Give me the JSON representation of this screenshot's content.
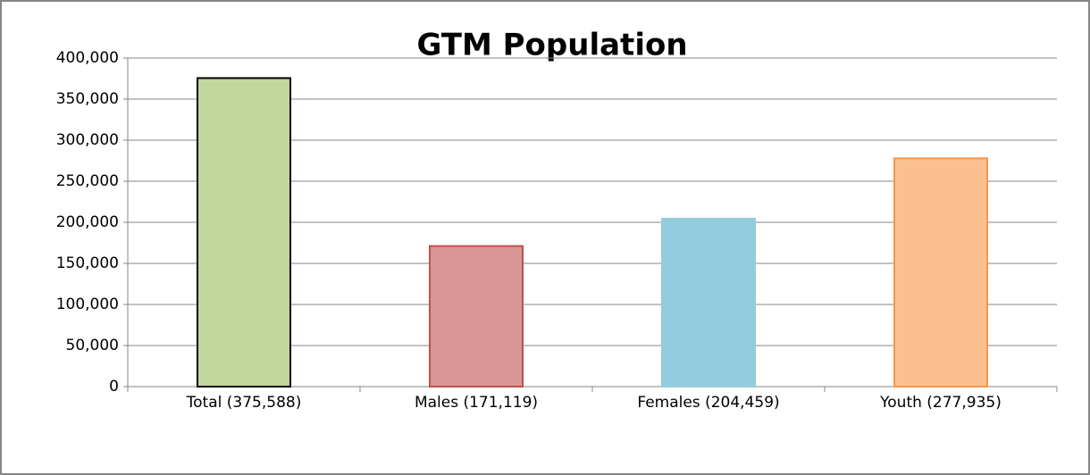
{
  "chart_data": {
    "type": "bar",
    "title": "GTM Population",
    "categories": [
      "Total (375,588)",
      "Males (171,119)",
      "Females (204,459)",
      "Youth (277,935)"
    ],
    "values": [
      375588,
      171119,
      204459,
      277935
    ],
    "colors": [
      "#c3d69b",
      "#d99694",
      "#93cddd",
      "#fac090"
    ],
    "edge_colors": [
      "#000000",
      "#c0504d",
      "#93cddd",
      "#f79646"
    ],
    "ylim": [
      0,
      400000
    ],
    "yticks": [
      0,
      {
        "value": 50000,
        "label": "50,000"
      },
      {
        "value": 100000,
        "label": "100,000"
      },
      {
        "value": 150000,
        "label": "150,000"
      },
      {
        "value": 200000,
        "label": "200,000"
      },
      {
        "value": 250000,
        "label": "250,000"
      },
      {
        "value": 300000,
        "label": "300,000"
      },
      {
        "value": 350000,
        "label": "350,000"
      },
      {
        "value": 400000,
        "label": "400,000"
      }
    ],
    "grid": true
  }
}
